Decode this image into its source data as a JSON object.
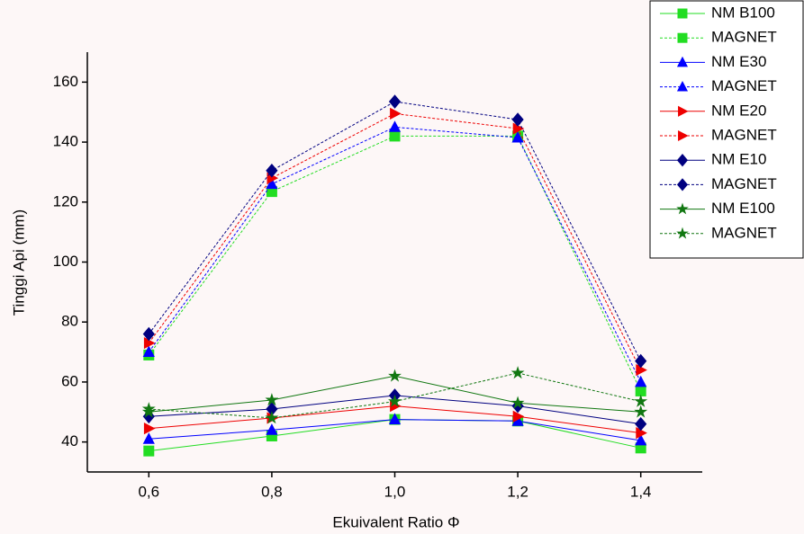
{
  "chart_data": {
    "type": "line",
    "xlabel": "Ekuivalent Ratio Φ",
    "ylabel": "Tinggi Api (mm)",
    "x": [
      0.6,
      0.8,
      1.0,
      1.2,
      1.4
    ],
    "xlim": [
      0.5,
      1.5
    ],
    "xticks": [
      {
        "value": 0.6,
        "label": "0,6"
      },
      {
        "value": 0.8,
        "label": "0,8"
      },
      {
        "value": 1.0,
        "label": "1,0"
      },
      {
        "value": 1.2,
        "label": "1,2"
      },
      {
        "value": 1.4,
        "label": "1,4"
      }
    ],
    "ylim": [
      30,
      170
    ],
    "yticks": [
      40,
      60,
      80,
      100,
      120,
      140,
      160
    ],
    "grid": false,
    "legend": "top-right",
    "series": [
      {
        "name": "NM B100",
        "color": "#22dd22",
        "marker": "square",
        "dash": false,
        "values": [
          37,
          42,
          47.5,
          47,
          38
        ]
      },
      {
        "name": "MAGNET",
        "color": "#22dd22",
        "marker": "square",
        "dash": true,
        "values": [
          69,
          123.5,
          142,
          142,
          57
        ]
      },
      {
        "name": "NM E30",
        "color": "#0000ff",
        "marker": "triangle-up",
        "dash": false,
        "values": [
          41,
          44,
          47.5,
          47,
          40.5
        ]
      },
      {
        "name": "MAGNET",
        "color": "#0000ff",
        "marker": "triangle-up",
        "dash": true,
        "values": [
          70,
          126,
          145,
          141.5,
          60
        ]
      },
      {
        "name": "NM E20",
        "color": "#ee0000",
        "marker": "triangle-right",
        "dash": false,
        "values": [
          44.5,
          48,
          52,
          48.5,
          43
        ]
      },
      {
        "name": "MAGNET",
        "color": "#ee0000",
        "marker": "triangle-right",
        "dash": true,
        "values": [
          73,
          128,
          149.5,
          144.5,
          64
        ]
      },
      {
        "name": "NM E10",
        "color": "#000080",
        "marker": "diamond",
        "dash": false,
        "values": [
          48.5,
          51,
          55.5,
          52,
          46
        ]
      },
      {
        "name": "MAGNET",
        "color": "#000080",
        "marker": "diamond",
        "dash": true,
        "values": [
          76,
          130.5,
          153.5,
          147.5,
          67
        ]
      },
      {
        "name": "NM E100",
        "color": "#117711",
        "marker": "star",
        "dash": false,
        "values": [
          50,
          54,
          62,
          53,
          50
        ]
      },
      {
        "name": "MAGNET",
        "color": "#117711",
        "marker": "star",
        "dash": true,
        "values": [
          51,
          48,
          53.5,
          63,
          53.5
        ]
      }
    ]
  }
}
